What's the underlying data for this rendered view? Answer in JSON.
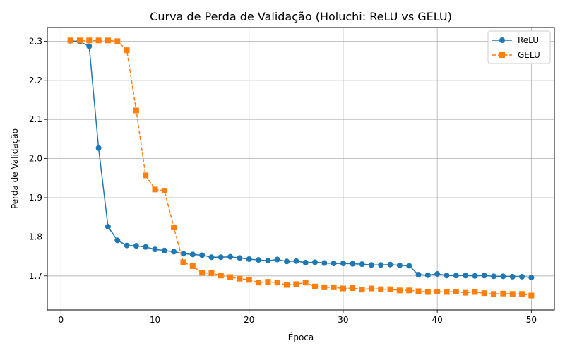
{
  "chart_data": {
    "type": "line",
    "title": "Curva de Perda de Validação (Holuchi: ReLU vs GELU)",
    "xlabel": "Época",
    "ylabel": "Perda de Validação",
    "xlim": [
      -1.45,
      52.45
    ],
    "ylim": [
      1.613,
      2.335
    ],
    "xticks": [
      0,
      10,
      20,
      30,
      40,
      50
    ],
    "yticks": [
      1.7,
      1.8,
      1.9,
      2.0,
      2.1,
      2.2,
      2.3
    ],
    "grid": true,
    "legend_position": "top-right",
    "x": [
      1,
      2,
      3,
      4,
      5,
      6,
      7,
      8,
      9,
      10,
      11,
      12,
      13,
      14,
      15,
      16,
      17,
      18,
      19,
      20,
      21,
      22,
      23,
      24,
      25,
      26,
      27,
      28,
      29,
      30,
      31,
      32,
      33,
      34,
      35,
      36,
      37,
      38,
      39,
      40,
      41,
      42,
      43,
      44,
      45,
      46,
      47,
      48,
      49,
      50
    ],
    "series": [
      {
        "name": "ReLU",
        "color": "#1f77b4",
        "marker": "circle",
        "line_style": "solid",
        "values": [
          2.301,
          2.299,
          2.287,
          2.027,
          1.826,
          1.791,
          1.778,
          1.777,
          1.774,
          1.768,
          1.765,
          1.762,
          1.757,
          1.755,
          1.753,
          1.748,
          1.748,
          1.749,
          1.746,
          1.743,
          1.741,
          1.739,
          1.742,
          1.737,
          1.738,
          1.734,
          1.735,
          1.733,
          1.732,
          1.732,
          1.731,
          1.73,
          1.728,
          1.728,
          1.729,
          1.727,
          1.726,
          1.703,
          1.702,
          1.705,
          1.701,
          1.701,
          1.701,
          1.7,
          1.701,
          1.699,
          1.699,
          1.698,
          1.698,
          1.696
        ]
      },
      {
        "name": "GELU",
        "color": "#ff7f0e",
        "marker": "square",
        "line_style": "dashed",
        "values": [
          2.302,
          2.302,
          2.302,
          2.302,
          2.302,
          2.3,
          2.277,
          2.123,
          1.957,
          1.921,
          1.918,
          1.824,
          1.735,
          1.725,
          1.708,
          1.707,
          1.701,
          1.697,
          1.693,
          1.69,
          1.683,
          1.685,
          1.683,
          1.677,
          1.679,
          1.683,
          1.673,
          1.671,
          1.671,
          1.668,
          1.669,
          1.665,
          1.668,
          1.666,
          1.666,
          1.663,
          1.663,
          1.661,
          1.659,
          1.66,
          1.659,
          1.66,
          1.657,
          1.659,
          1.656,
          1.654,
          1.655,
          1.654,
          1.654,
          1.65
        ]
      }
    ]
  }
}
